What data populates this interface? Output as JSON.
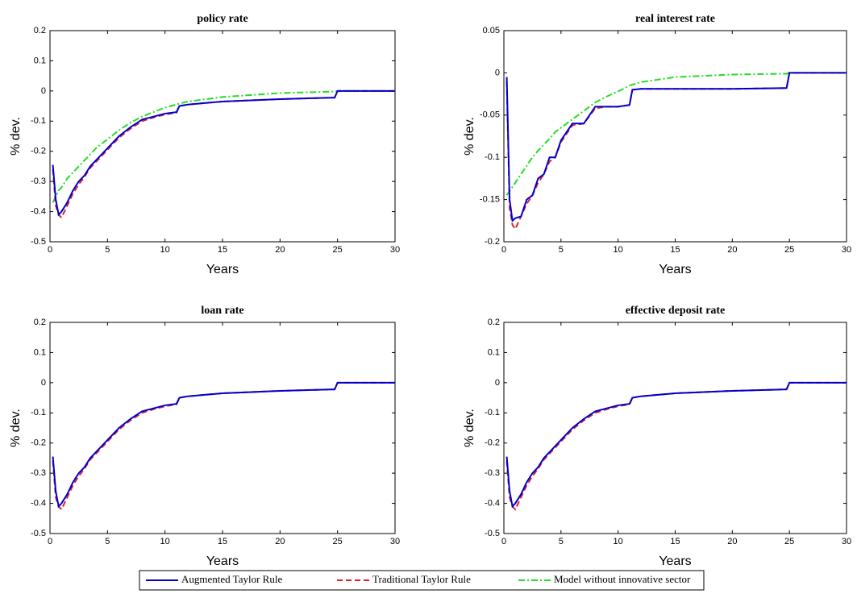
{
  "chart_data": [
    {
      "type": "line",
      "title": "policy rate",
      "xlabel": "Years",
      "ylabel": "% dev.",
      "x": [
        0.25,
        0.5,
        0.75,
        1,
        1.5,
        2,
        2.5,
        3,
        3.5,
        4,
        4.5,
        5,
        6,
        7,
        8,
        9,
        10,
        11,
        11.25,
        12,
        15,
        20,
        24.75,
        25,
        30
      ],
      "xlim": [
        0,
        30
      ],
      "xticks": [
        0,
        5,
        10,
        15,
        20,
        25,
        30
      ],
      "ylim": [
        -0.5,
        0.2
      ],
      "yticks": [
        -0.5,
        -0.4,
        -0.3,
        -0.2,
        -0.1,
        0,
        0.1,
        0.2
      ],
      "series": [
        {
          "name": "Augmented Taylor Rule",
          "color": "#0000cc",
          "dash": "none",
          "values": [
            -0.245,
            -0.36,
            -0.41,
            -0.4,
            -0.37,
            -0.33,
            -0.3,
            -0.28,
            -0.25,
            -0.23,
            -0.21,
            -0.19,
            -0.15,
            -0.12,
            -0.095,
            -0.085,
            -0.075,
            -0.07,
            -0.05,
            -0.045,
            -0.035,
            -0.027,
            -0.022,
            0,
            0
          ]
        },
        {
          "name": "Traditional Taylor Rule",
          "color": "#e0202a",
          "dash": "7,4",
          "values": [
            -0.26,
            -0.38,
            -0.41,
            -0.42,
            -0.38,
            -0.34,
            -0.31,
            -0.285,
            -0.255,
            -0.235,
            -0.215,
            -0.195,
            -0.155,
            -0.125,
            -0.1,
            -0.088,
            -0.078,
            -0.072,
            -0.05,
            -0.045,
            -0.035,
            -0.027,
            -0.022,
            0,
            0
          ]
        },
        {
          "name": "Model without innovative sector",
          "color": "#22dd22",
          "dash": "8,3,2,3",
          "values": [
            -0.37,
            -0.35,
            -0.33,
            -0.32,
            -0.29,
            -0.27,
            -0.25,
            -0.23,
            -0.21,
            -0.19,
            -0.175,
            -0.16,
            -0.13,
            -0.105,
            -0.085,
            -0.07,
            -0.055,
            -0.045,
            -0.042,
            -0.035,
            -0.02,
            -0.007,
            -0.002,
            0,
            0
          ]
        }
      ]
    },
    {
      "type": "line",
      "title": "real interest rate",
      "xlabel": "Years",
      "ylabel": "% dev.",
      "x": [
        0.25,
        0.5,
        0.75,
        1,
        1.5,
        2,
        2.5,
        3,
        3.5,
        4,
        4.5,
        5,
        6,
        7,
        8,
        9,
        10,
        11,
        11.25,
        12,
        15,
        20,
        24.75,
        25,
        30
      ],
      "xlim": [
        0,
        30
      ],
      "xticks": [
        0,
        5,
        10,
        15,
        20,
        25,
        30
      ],
      "ylim": [
        -0.2,
        0.05
      ],
      "yticks": [
        -0.2,
        -0.15,
        -0.1,
        -0.05,
        0,
        0.05
      ],
      "series": [
        {
          "color": "#0000cc",
          "dash": "none",
          "values": [
            -0.005,
            -0.15,
            -0.175,
            -0.172,
            -0.17,
            -0.15,
            -0.145,
            -0.125,
            -0.12,
            -0.1,
            -0.1,
            -0.08,
            -0.06,
            -0.06,
            -0.04,
            -0.04,
            -0.04,
            -0.038,
            -0.02,
            -0.019,
            -0.019,
            -0.019,
            -0.018,
            0,
            0
          ]
        },
        {
          "color": "#e0202a",
          "dash": "7,4",
          "values": [
            -0.01,
            -0.16,
            -0.18,
            -0.185,
            -0.17,
            -0.155,
            -0.145,
            -0.13,
            -0.12,
            -0.105,
            -0.1,
            -0.082,
            -0.062,
            -0.06,
            -0.042,
            -0.04,
            -0.04,
            -0.038,
            -0.02,
            -0.019,
            -0.019,
            -0.019,
            -0.018,
            0,
            0
          ]
        },
        {
          "color": "#22dd22",
          "dash": "8,3,2,3",
          "values": [
            -0.145,
            -0.14,
            -0.135,
            -0.13,
            -0.12,
            -0.11,
            -0.1,
            -0.092,
            -0.085,
            -0.078,
            -0.07,
            -0.065,
            -0.055,
            -0.045,
            -0.035,
            -0.028,
            -0.022,
            -0.015,
            -0.014,
            -0.011,
            -0.005,
            -0.002,
            -0.001,
            0,
            0
          ]
        }
      ]
    },
    {
      "type": "line",
      "title": "loan rate",
      "xlabel": "Years",
      "ylabel": "% dev.",
      "x": [
        0.25,
        0.5,
        0.75,
        1,
        1.5,
        2,
        2.5,
        3,
        3.5,
        4,
        4.5,
        5,
        6,
        7,
        8,
        9,
        10,
        11,
        11.25,
        12,
        15,
        20,
        24.75,
        25,
        30
      ],
      "xlim": [
        0,
        30
      ],
      "xticks": [
        0,
        5,
        10,
        15,
        20,
        25,
        30
      ],
      "ylim": [
        -0.5,
        0.2
      ],
      "yticks": [
        -0.5,
        -0.4,
        -0.3,
        -0.2,
        -0.1,
        0,
        0.1,
        0.2
      ],
      "series": [
        {
          "color": "#0000cc",
          "dash": "none",
          "values": [
            -0.245,
            -0.36,
            -0.41,
            -0.4,
            -0.37,
            -0.33,
            -0.3,
            -0.28,
            -0.25,
            -0.23,
            -0.21,
            -0.19,
            -0.15,
            -0.12,
            -0.095,
            -0.085,
            -0.075,
            -0.07,
            -0.05,
            -0.045,
            -0.035,
            -0.027,
            -0.022,
            0,
            0
          ]
        },
        {
          "color": "#e0202a",
          "dash": "7,4",
          "values": [
            -0.26,
            -0.38,
            -0.41,
            -0.42,
            -0.38,
            -0.34,
            -0.31,
            -0.285,
            -0.255,
            -0.235,
            -0.215,
            -0.195,
            -0.155,
            -0.125,
            -0.1,
            -0.088,
            -0.078,
            -0.072,
            -0.05,
            -0.045,
            -0.035,
            -0.027,
            -0.022,
            0,
            0
          ]
        }
      ]
    },
    {
      "type": "line",
      "title": "effective deposit rate",
      "xlabel": "Years",
      "ylabel": "% dev.",
      "x": [
        0.25,
        0.5,
        0.75,
        1,
        1.5,
        2,
        2.5,
        3,
        3.5,
        4,
        4.5,
        5,
        6,
        7,
        8,
        9,
        10,
        11,
        11.25,
        12,
        15,
        20,
        24.75,
        25,
        30
      ],
      "xlim": [
        0,
        30
      ],
      "xticks": [
        0,
        5,
        10,
        15,
        20,
        25,
        30
      ],
      "ylim": [
        -0.5,
        0.2
      ],
      "yticks": [
        -0.5,
        -0.4,
        -0.3,
        -0.2,
        -0.1,
        0,
        0.1,
        0.2
      ],
      "series": [
        {
          "color": "#0000cc",
          "dash": "none",
          "values": [
            -0.245,
            -0.36,
            -0.41,
            -0.4,
            -0.37,
            -0.33,
            -0.3,
            -0.28,
            -0.25,
            -0.23,
            -0.21,
            -0.19,
            -0.15,
            -0.12,
            -0.095,
            -0.085,
            -0.075,
            -0.07,
            -0.05,
            -0.045,
            -0.035,
            -0.027,
            -0.022,
            0,
            0
          ]
        },
        {
          "color": "#e0202a",
          "dash": "7,4",
          "values": [
            -0.26,
            -0.38,
            -0.41,
            -0.42,
            -0.38,
            -0.34,
            -0.31,
            -0.285,
            -0.255,
            -0.235,
            -0.215,
            -0.195,
            -0.155,
            -0.125,
            -0.1,
            -0.088,
            -0.078,
            -0.072,
            -0.05,
            -0.045,
            -0.035,
            -0.027,
            -0.022,
            0,
            0
          ]
        }
      ]
    }
  ]
}
